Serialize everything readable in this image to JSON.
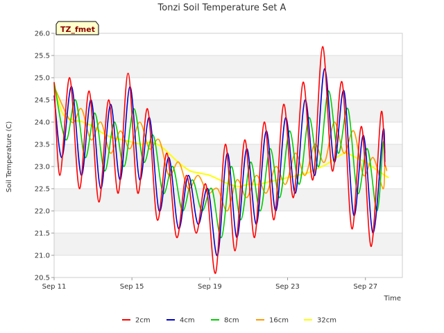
{
  "chart_data": {
    "type": "line",
    "title": "Tonzi Soil Temperature Set A",
    "xlabel": "Time",
    "ylabel": "Soil Temperature (C)",
    "badge": "TZ_fmet",
    "ylim": [
      20.5,
      26.0
    ],
    "yticks": [
      "20.5",
      "21.0",
      "21.5",
      "22.0",
      "22.5",
      "23.0",
      "23.5",
      "24.0",
      "24.5",
      "25.0",
      "25.5",
      "26.0"
    ],
    "xlim_days": [
      0,
      17.9
    ],
    "xticks": [
      {
        "day": 0,
        "label": "Sep 11"
      },
      {
        "day": 4,
        "label": "Sep 15"
      },
      {
        "day": 8,
        "label": "Sep 19"
      },
      {
        "day": 12,
        "label": "Sep 23"
      },
      {
        "day": 16,
        "label": "Sep 27"
      }
    ],
    "grid": true,
    "legend_position": "bottom",
    "series": [
      {
        "name": "2cm",
        "color": "#ff0000",
        "mins": [
          [
            0.3,
            22.8
          ],
          [
            1.3,
            22.5
          ],
          [
            2.3,
            22.2
          ],
          [
            3.3,
            22.4
          ],
          [
            4.3,
            22.4
          ],
          [
            5.3,
            21.8
          ],
          [
            6.3,
            21.4
          ],
          [
            7.3,
            21.5
          ],
          [
            8.3,
            20.6
          ],
          [
            9.3,
            21.1
          ],
          [
            10.3,
            21.4
          ],
          [
            11.3,
            21.8
          ],
          [
            12.3,
            22.3
          ],
          [
            13.3,
            22.7
          ],
          [
            14.3,
            22.9
          ],
          [
            15.3,
            21.6
          ],
          [
            16.3,
            21.2
          ]
        ],
        "maxs": [
          [
            0.0,
            24.9
          ],
          [
            0.8,
            25.0
          ],
          [
            1.8,
            24.7
          ],
          [
            2.8,
            24.5
          ],
          [
            3.8,
            25.1
          ],
          [
            4.8,
            24.3
          ],
          [
            5.8,
            23.3
          ],
          [
            6.8,
            22.8
          ],
          [
            7.8,
            22.6
          ],
          [
            8.8,
            23.5
          ],
          [
            9.8,
            23.6
          ],
          [
            10.8,
            24.0
          ],
          [
            11.8,
            24.4
          ],
          [
            12.8,
            24.9
          ],
          [
            13.8,
            25.7
          ],
          [
            14.8,
            24.9
          ],
          [
            15.8,
            23.9
          ],
          [
            16.8,
            24.2
          ]
        ],
        "end": [
          17.0,
          23.0
        ]
      },
      {
        "name": "4cm",
        "color": "#0000cc",
        "mins": [
          [
            0.4,
            23.2
          ],
          [
            1.4,
            22.8
          ],
          [
            2.4,
            22.5
          ],
          [
            3.4,
            22.7
          ],
          [
            4.4,
            22.7
          ],
          [
            5.4,
            22.0
          ],
          [
            6.4,
            21.6
          ],
          [
            7.4,
            21.7
          ],
          [
            8.4,
            21.0
          ],
          [
            9.4,
            21.4
          ],
          [
            10.4,
            21.7
          ],
          [
            11.4,
            22.0
          ],
          [
            12.4,
            22.4
          ],
          [
            13.4,
            22.8
          ],
          [
            14.4,
            23.1
          ],
          [
            15.4,
            21.9
          ],
          [
            16.4,
            21.5
          ]
        ],
        "maxs": [
          [
            0.0,
            24.6
          ],
          [
            0.9,
            24.8
          ],
          [
            1.9,
            24.5
          ],
          [
            2.9,
            24.4
          ],
          [
            3.9,
            24.8
          ],
          [
            4.9,
            24.1
          ],
          [
            5.9,
            23.2
          ],
          [
            6.9,
            22.8
          ],
          [
            7.9,
            22.5
          ],
          [
            8.9,
            23.3
          ],
          [
            9.9,
            23.4
          ],
          [
            10.9,
            23.8
          ],
          [
            11.9,
            24.1
          ],
          [
            12.9,
            24.5
          ],
          [
            13.9,
            25.2
          ],
          [
            14.9,
            24.7
          ],
          [
            15.9,
            23.7
          ],
          [
            16.9,
            23.8
          ]
        ],
        "end": [
          17.0,
          23.1
        ]
      },
      {
        "name": "8cm",
        "color": "#00cc00",
        "mins": [
          [
            0.6,
            23.6
          ],
          [
            1.6,
            23.2
          ],
          [
            2.6,
            22.9
          ],
          [
            3.6,
            23.0
          ],
          [
            4.6,
            23.1
          ],
          [
            5.6,
            22.4
          ],
          [
            6.6,
            22.0
          ],
          [
            7.6,
            22.0
          ],
          [
            8.6,
            21.4
          ],
          [
            9.6,
            21.8
          ],
          [
            10.6,
            22.0
          ],
          [
            11.6,
            22.3
          ],
          [
            12.6,
            22.6
          ],
          [
            13.6,
            23.0
          ],
          [
            14.6,
            23.3
          ],
          [
            15.6,
            22.4
          ],
          [
            16.6,
            22.0
          ]
        ],
        "maxs": [
          [
            0.0,
            24.9
          ],
          [
            1.1,
            24.5
          ],
          [
            2.1,
            24.2
          ],
          [
            3.1,
            24.0
          ],
          [
            4.1,
            24.3
          ],
          [
            5.1,
            23.7
          ],
          [
            6.1,
            23.0
          ],
          [
            7.1,
            22.7
          ],
          [
            8.1,
            22.5
          ],
          [
            9.1,
            23.0
          ],
          [
            10.1,
            23.1
          ],
          [
            11.1,
            23.4
          ],
          [
            12.1,
            23.8
          ],
          [
            13.1,
            24.1
          ],
          [
            14.1,
            24.7
          ],
          [
            15.1,
            24.3
          ],
          [
            16.1,
            23.4
          ],
          [
            16.9,
            23.5
          ]
        ],
        "end": [
          17.0,
          23.3
        ]
      },
      {
        "name": "16cm",
        "color": "#ff9900",
        "mins": [
          [
            0.9,
            24.0
          ],
          [
            1.9,
            23.6
          ],
          [
            2.9,
            23.3
          ],
          [
            3.9,
            23.4
          ],
          [
            4.9,
            23.4
          ],
          [
            5.9,
            22.8
          ],
          [
            6.9,
            22.5
          ],
          [
            7.9,
            22.4
          ],
          [
            8.9,
            22.0
          ],
          [
            9.9,
            22.3
          ],
          [
            10.9,
            22.4
          ],
          [
            11.9,
            22.6
          ],
          [
            12.9,
            22.8
          ],
          [
            13.9,
            23.1
          ],
          [
            14.9,
            23.3
          ],
          [
            15.9,
            22.8
          ],
          [
            16.9,
            22.5
          ]
        ],
        "maxs": [
          [
            0.0,
            24.8
          ],
          [
            1.4,
            24.3
          ],
          [
            2.4,
            24.0
          ],
          [
            3.4,
            23.8
          ],
          [
            4.4,
            24.0
          ],
          [
            5.4,
            23.6
          ],
          [
            6.4,
            23.1
          ],
          [
            7.4,
            22.8
          ],
          [
            8.4,
            22.5
          ],
          [
            9.4,
            22.7
          ],
          [
            10.4,
            22.8
          ],
          [
            11.4,
            23.0
          ],
          [
            12.4,
            23.3
          ],
          [
            13.4,
            23.5
          ],
          [
            14.4,
            24.0
          ],
          [
            15.4,
            23.8
          ],
          [
            16.4,
            23.2
          ],
          [
            17.0,
            23.0
          ]
        ],
        "end": [
          17.1,
          22.9
        ]
      },
      {
        "name": "32cm",
        "color": "#ffff00",
        "smooth": [
          [
            0.0,
            24.85
          ],
          [
            0.2,
            24.5
          ],
          [
            0.5,
            24.15
          ],
          [
            1.0,
            24.05
          ],
          [
            1.5,
            24.0
          ],
          [
            2.0,
            23.9
          ],
          [
            2.5,
            23.75
          ],
          [
            3.0,
            23.65
          ],
          [
            3.5,
            23.6
          ],
          [
            4.0,
            23.55
          ],
          [
            4.5,
            23.5
          ],
          [
            5.0,
            23.55
          ],
          [
            5.5,
            23.45
          ],
          [
            6.0,
            23.25
          ],
          [
            6.5,
            23.05
          ],
          [
            7.0,
            22.9
          ],
          [
            7.5,
            22.85
          ],
          [
            8.0,
            22.8
          ],
          [
            8.5,
            22.7
          ],
          [
            9.0,
            22.6
          ],
          [
            9.5,
            22.55
          ],
          [
            10.0,
            22.6
          ],
          [
            10.5,
            22.6
          ],
          [
            11.0,
            22.65
          ],
          [
            11.5,
            22.7
          ],
          [
            12.0,
            22.75
          ],
          [
            12.5,
            22.8
          ],
          [
            13.0,
            22.85
          ],
          [
            13.5,
            22.95
          ],
          [
            14.0,
            23.05
          ],
          [
            14.5,
            23.2
          ],
          [
            15.0,
            23.3
          ],
          [
            15.5,
            23.2
          ],
          [
            16.0,
            23.1
          ],
          [
            16.5,
            22.95
          ],
          [
            17.0,
            22.8
          ],
          [
            17.2,
            22.75
          ]
        ]
      }
    ]
  }
}
